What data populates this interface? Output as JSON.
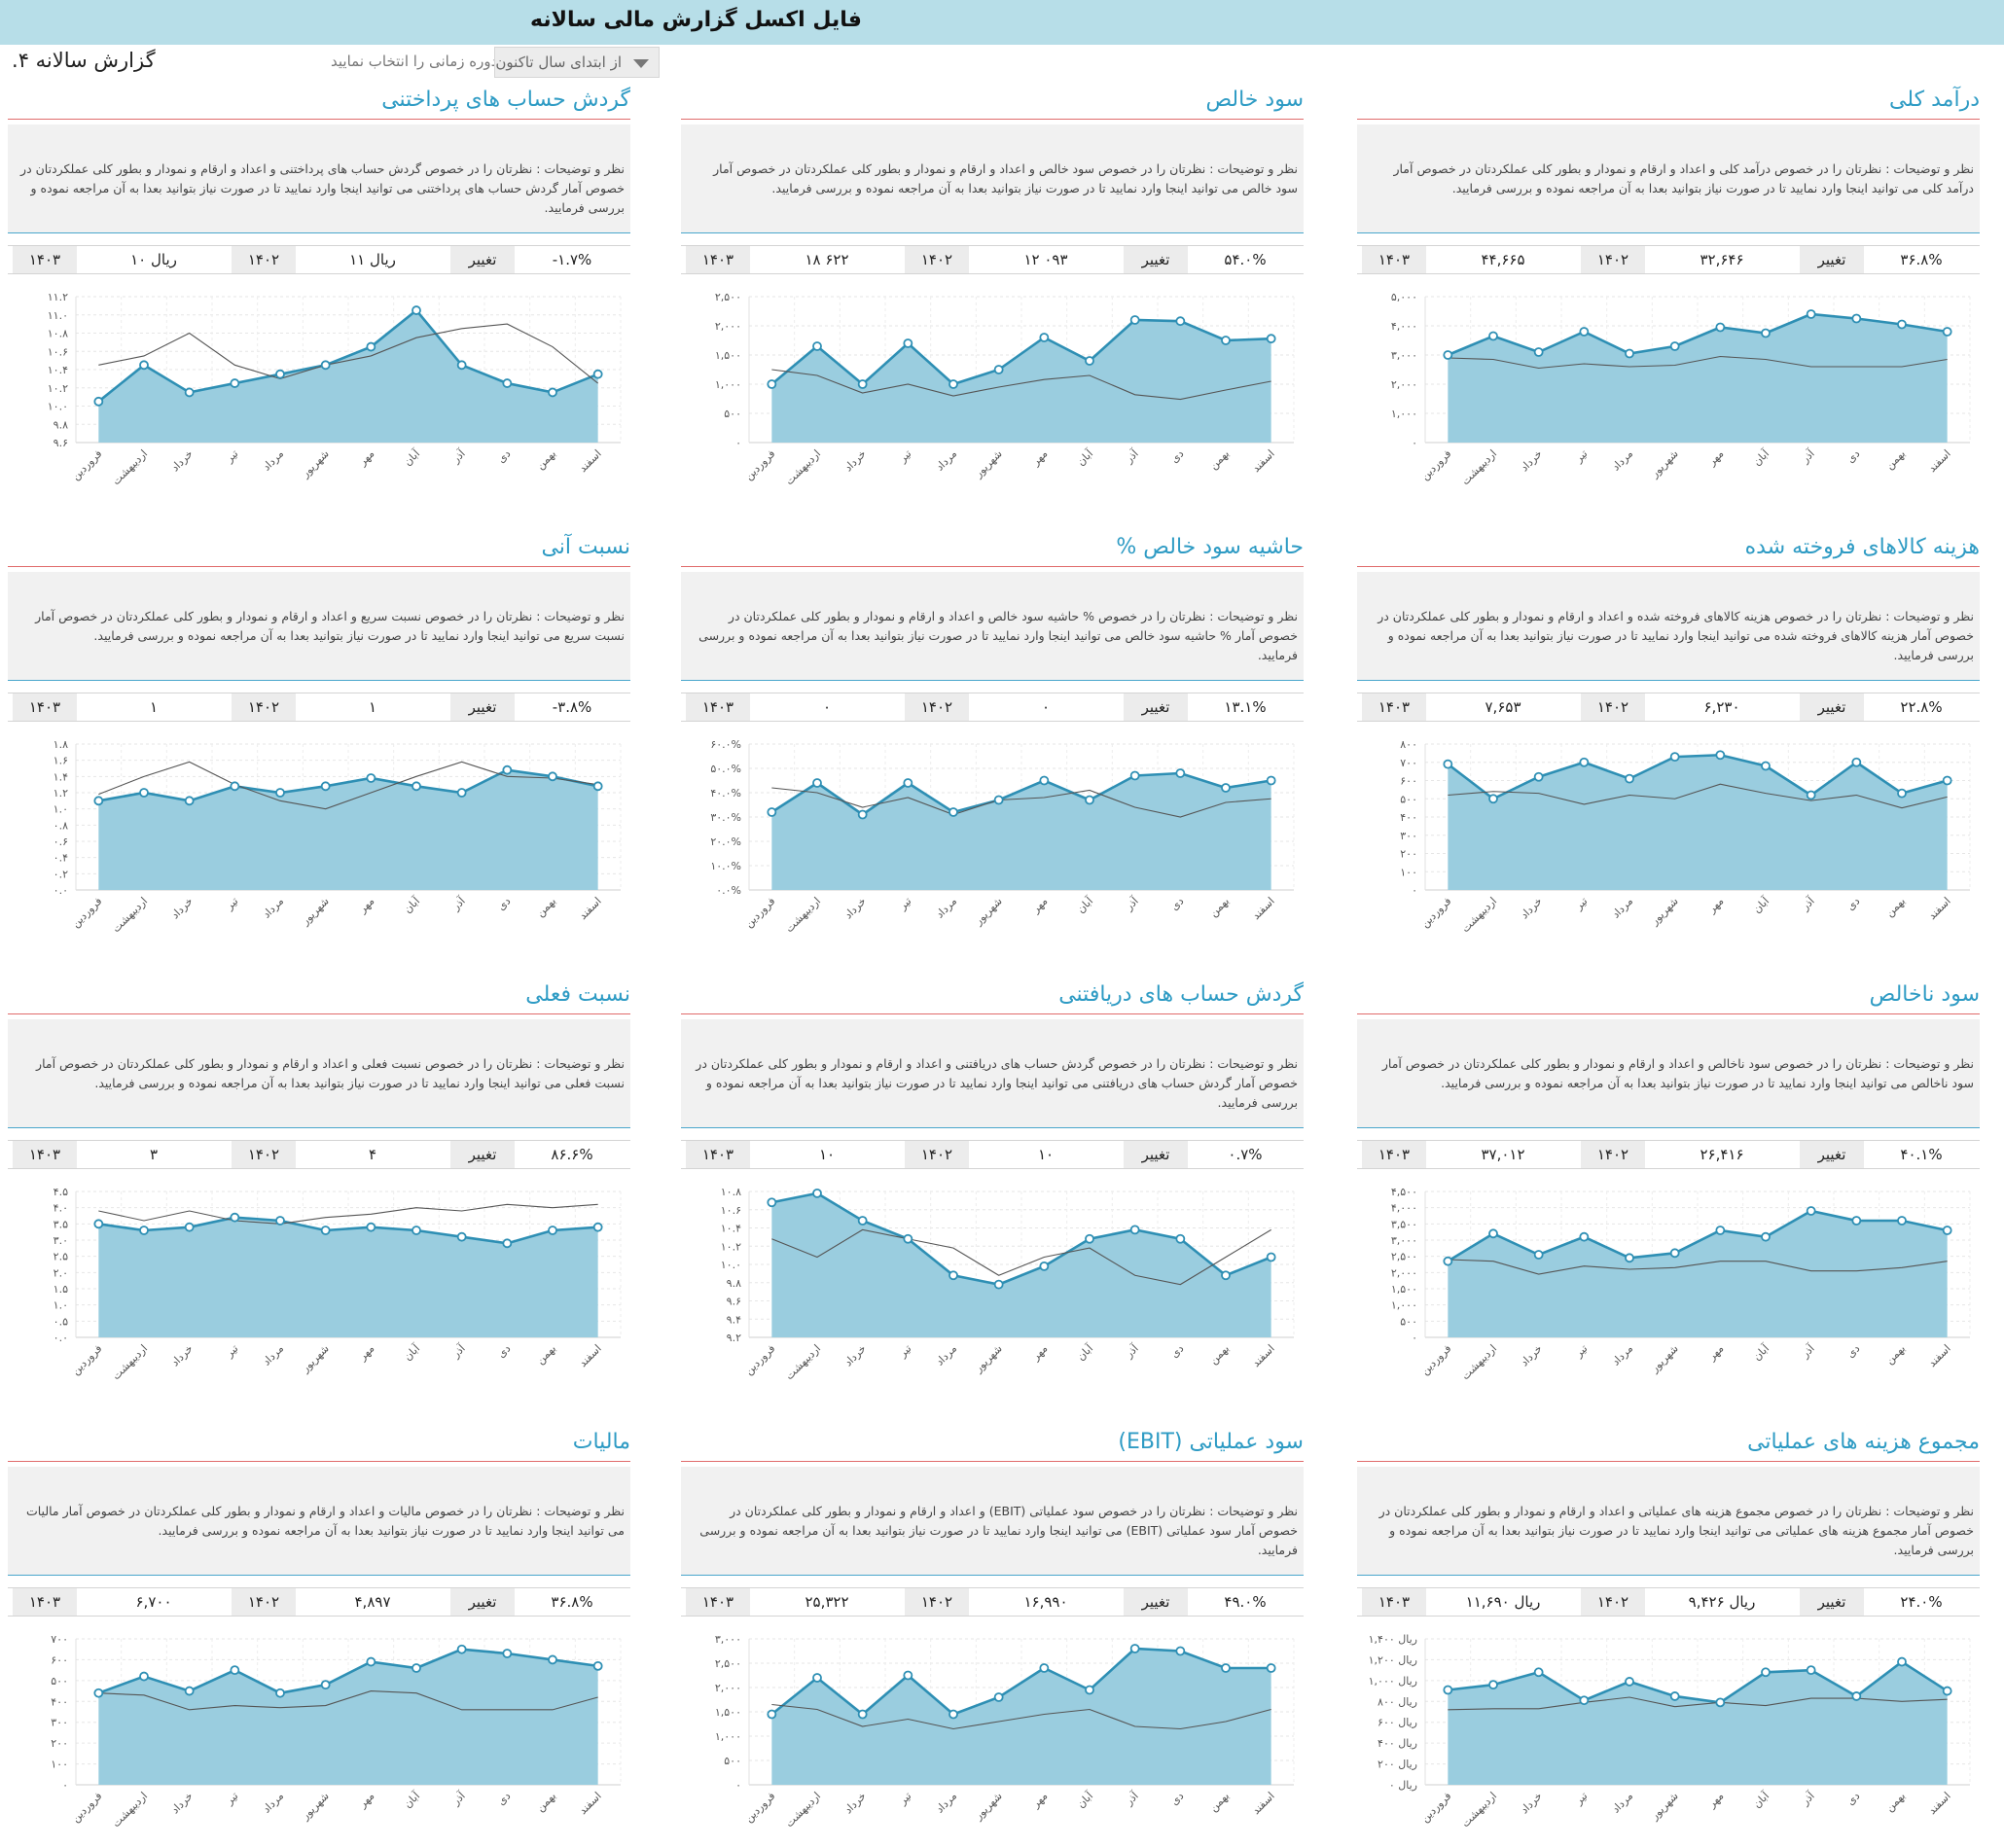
{
  "header": {
    "title": "فایل اکسل گزارش مالی سالانه",
    "report_title": "گزارش سالانه ۴.",
    "period_hint": "دوره زمانی را انتخاب نمایید",
    "period_value": "از ابتدای سال تاکنون"
  },
  "colors": {
    "accent": "#2e9bc4",
    "area_fill": "#9acddf",
    "title_rule": "#e06b6b",
    "comment_rule": "#4aa7cc"
  },
  "kpi_labels": {
    "current_year": "۱۴۰۳",
    "previous_year": "۱۴۰۲",
    "change": "تغییر"
  },
  "months": [
    "فروردین",
    "اردیبهشت",
    "خرداد",
    "تیر",
    "مرداد",
    "شهریور",
    "مهر",
    "آبان",
    "آذر",
    "دی",
    "بهمن",
    "اسفند"
  ],
  "panels": [
    {
      "title": "درآمد کلی",
      "comment": "نظر و توضیحات : نظرتان را در خصوص درآمد کلی و اعداد و ارقام و نمودار و بطور کلی عملکردتان در خصوص آمار درآمد کلی می توانید اینجا وارد نمایید تا در صورت نیاز بتوانید بعدا به آن مراجعه نموده و بررسی فرمایید.",
      "kpi": {
        "current": "۴۴,۶۶۵",
        "previous": "۳۲,۶۴۶",
        "change": "۳۶.۸%"
      }
    },
    {
      "title": "سود خالص",
      "comment": "نظر و توضیحات : نظرتان را در خصوص سود خالص و اعداد و ارقام و نمودار و بطور کلی عملکردتان در خصوص آمار سود خالص می توانید اینجا وارد نمایید تا در صورت نیاز بتوانید بعدا به آن مراجعه نموده و بررسی فرمایید.",
      "kpi": {
        "current": "۱۸ ۶۲۲",
        "previous": "۱۲ ۰۹۳",
        "change": "۵۴.۰%"
      }
    },
    {
      "title": "گردش حساب های پرداختنی",
      "comment": "نظر و توضیحات : نظرتان را در خصوص گردش حساب های پرداختنی و اعداد و ارقام و نمودار و بطور کلی عملکردتان در خصوص آمار گردش حساب های پرداختنی می توانید اینجا وارد نمایید تا در صورت نیاز بتوانید بعدا به آن مراجعه نموده و بررسی فرمایید.",
      "kpi": {
        "current": "ریال ۱۰",
        "previous": "ریال ۱۱",
        "change": "-۱.۷%"
      }
    },
    {
      "title": "هزینه کالاهای فروخته شده",
      "comment": "نظر و توضیحات : نظرتان را در خصوص هزینه کالاهای فروخته شده و اعداد و ارقام و نمودار و بطور کلی عملکردتان در خصوص آمار هزینه کالاهای فروخته شده می توانید اینجا وارد نمایید تا در صورت نیاز بتوانید بعدا به آن مراجعه نموده و بررسی فرمایید.",
      "kpi": {
        "current": "۷,۶۵۳",
        "previous": "۶,۲۳۰",
        "change": "۲۲.۸%"
      }
    },
    {
      "title": "حاشیه سود خالص %",
      "comment": "نظر و توضیحات : نظرتان را در خصوص % حاشیه سود خالص و اعداد و ارقام و نمودار و بطور کلی عملکردتان در خصوص آمار % حاشیه سود خالص می توانید اینجا وارد نمایید تا در صورت نیاز بتوانید بعدا به آن مراجعه نموده و بررسی فرمایید.",
      "kpi": {
        "current": "۰",
        "previous": "۰",
        "change": "۱۳.۱%"
      }
    },
    {
      "title": "نسبت آنی",
      "comment": "نظر و توضیحات : نظرتان را در خصوص نسبت سریع و اعداد و ارقام و نمودار و بطور کلی عملکردتان در خصوص آمار نسبت سریع می توانید اینجا وارد نمایید تا در صورت نیاز بتوانید بعدا به آن مراجعه نموده و بررسی فرمایید.",
      "kpi": {
        "current": "۱",
        "previous": "۱",
        "change": "-۳.۸%"
      }
    },
    {
      "title": "سود ناخالص",
      "comment": "نظر و توضیحات : نظرتان را در خصوص سود ناخالص و اعداد و ارقام و نمودار و بطور کلی عملکردتان در خصوص آمار سود ناخالص می توانید اینجا وارد نمایید تا در صورت نیاز بتوانید بعدا به آن مراجعه نموده و بررسی فرمایید.",
      "kpi": {
        "current": "۳۷,۰۱۲",
        "previous": "۲۶,۴۱۶",
        "change": "۴۰.۱%"
      }
    },
    {
      "title": "گردش حساب های دریافتنی",
      "comment": "نظر و توضیحات : نظرتان را در خصوص گردش حساب های دریافتنی و اعداد و ارقام و نمودار و بطور کلی عملکردتان در خصوص آمار گردش حساب های دریافتنی می توانید اینجا وارد نمایید تا در صورت نیاز بتوانید بعدا به آن مراجعه نموده و بررسی فرمایید.",
      "kpi": {
        "current": "۱۰",
        "previous": "۱۰",
        "change": "۰.۷%"
      }
    },
    {
      "title": "نسبت فعلی",
      "comment": "نظر و توضیحات : نظرتان را در خصوص نسبت فعلی و اعداد و ارقام و نمودار و بطور کلی عملکردتان در خصوص آمار نسبت فعلی می توانید اینجا وارد نمایید تا در صورت نیاز بتوانید بعدا به آن مراجعه نموده و بررسی فرمایید.",
      "kpi": {
        "current": "۳",
        "previous": "۴",
        "change": "۸۶.۶%"
      }
    },
    {
      "title": "مجموع هزینه های عملیاتی",
      "comment": "نظر و توضیحات : نظرتان را در خصوص مجموع هزینه های عملیاتی و اعداد و ارقام و نمودار و بطور کلی عملکردتان در خصوص آمار مجموع هزینه های عملیاتی می توانید اینجا وارد نمایید تا در صورت نیاز بتوانید بعدا به آن مراجعه نموده و بررسی فرمایید.",
      "kpi": {
        "current": "ریال ۱۱,۶۹۰",
        "previous": "ریال ۹,۴۲۶",
        "change": "۲۴.۰%"
      }
    },
    {
      "title": "سود عملیاتی (EBIT)",
      "comment": "نظر و توضیحات : نظرتان را در خصوص سود عملیاتی (EBIT) و اعداد و ارقام و نمودار و بطور کلی عملکردتان در خصوص آمار سود عملیاتی (EBIT) می توانید اینجا وارد نمایید تا در صورت نیاز بتوانید بعدا به آن مراجعه نموده و بررسی فرمایید.",
      "kpi": {
        "current": "۲۵,۳۲۲",
        "previous": "۱۶,۹۹۰",
        "change": "۴۹.۰%"
      }
    },
    {
      "title": "مالیات",
      "comment": "نظر و توضیحات : نظرتان را در خصوص مالیات و اعداد و ارقام و نمودار و بطور کلی عملکردتان در خصوص آمار مالیات می توانید اینجا وارد نمایید تا در صورت نیاز بتوانید بعدا به آن مراجعه نموده و بررسی فرمایید.",
      "kpi": {
        "current": "۶,۷۰۰",
        "previous": "۴,۸۹۷",
        "change": "۳۶.۸%"
      }
    }
  ],
  "chart_data": [
    {
      "type": "area",
      "x": "months",
      "ylim": [
        0,
        5000
      ],
      "yticks": [
        "۰",
        "۱,۰۰۰",
        "۲,۰۰۰",
        "۳,۰۰۰",
        "۴,۰۰۰",
        "۵,۰۰۰"
      ],
      "series": [
        {
          "values": [
            3000,
            3650,
            3100,
            3800,
            3050,
            3300,
            3950,
            3750,
            4400,
            4250,
            4050,
            3800
          ]
        },
        {
          "values": [
            2900,
            2850,
            2550,
            2700,
            2600,
            2650,
            2950,
            2850,
            2600,
            2600,
            2600,
            2850
          ]
        }
      ]
    },
    {
      "type": "area",
      "x": "months",
      "ylim": [
        0,
        2500
      ],
      "yticks": [
        "۰",
        "۵۰۰",
        "۱,۰۰۰",
        "۱,۵۰۰",
        "۲,۰۰۰",
        "۲,۵۰۰"
      ],
      "series": [
        {
          "values": [
            1000,
            1650,
            1000,
            1700,
            1000,
            1250,
            1800,
            1400,
            2100,
            2080,
            1750,
            1780
          ]
        },
        {
          "values": [
            1250,
            1150,
            850,
            1000,
            800,
            950,
            1080,
            1150,
            820,
            740,
            900,
            1050
          ]
        }
      ]
    },
    {
      "type": "area",
      "x": "months",
      "ylim": [
        9.6,
        11.2
      ],
      "yticks": [
        "۹.۶",
        "۹.۸",
        "۱۰.۰",
        "۱۰.۲",
        "۱۰.۴",
        "۱۰.۶",
        "۱۰.۸",
        "۱۱.۰",
        "۱۱.۲"
      ],
      "series": [
        {
          "values": [
            10.05,
            10.45,
            10.15,
            10.25,
            10.35,
            10.45,
            10.65,
            11.05,
            10.45,
            10.25,
            10.15,
            10.35
          ]
        },
        {
          "values": [
            10.45,
            10.55,
            10.8,
            10.45,
            10.3,
            10.45,
            10.55,
            10.75,
            10.85,
            10.9,
            10.65,
            10.25
          ]
        }
      ]
    },
    {
      "type": "area",
      "x": "months",
      "ylim": [
        0,
        800
      ],
      "yticks": [
        "۰",
        "۱۰۰",
        "۲۰۰",
        "۳۰۰",
        "۴۰۰",
        "۵۰۰",
        "۶۰۰",
        "۷۰۰",
        "۸۰۰"
      ],
      "series": [
        {
          "values": [
            690,
            500,
            620,
            700,
            610,
            730,
            740,
            680,
            520,
            700,
            530,
            600
          ]
        },
        {
          "values": [
            520,
            540,
            530,
            470,
            520,
            500,
            580,
            530,
            490,
            520,
            450,
            510
          ]
        }
      ]
    },
    {
      "type": "area",
      "x": "months",
      "ylim": [
        0,
        60
      ],
      "yticks": [
        "۰.۰%",
        "۱۰.۰%",
        "۲۰.۰%",
        "۳۰.۰%",
        "۴۰.۰%",
        "۵۰.۰%",
        "۶۰.۰%"
      ],
      "series": [
        {
          "values": [
            32,
            44,
            31,
            44,
            32,
            37,
            45,
            37,
            47,
            48,
            42,
            45
          ]
        },
        {
          "values": [
            42,
            40,
            34,
            38,
            31,
            37,
            38,
            41,
            34,
            30,
            36,
            37.5
          ]
        }
      ]
    },
    {
      "type": "area",
      "x": "months",
      "ylim": [
        0,
        1.8
      ],
      "yticks": [
        "۰.۰",
        "۰.۲",
        "۰.۴",
        "۰.۶",
        "۰.۸",
        "۱.۰",
        "۱.۲",
        "۱.۴",
        "۱.۶",
        "۱.۸"
      ],
      "series": [
        {
          "values": [
            1.1,
            1.2,
            1.1,
            1.28,
            1.2,
            1.28,
            1.38,
            1.28,
            1.2,
            1.48,
            1.4,
            1.28
          ]
        },
        {
          "values": [
            1.18,
            1.4,
            1.58,
            1.3,
            1.1,
            1.0,
            1.2,
            1.4,
            1.58,
            1.4,
            1.38,
            1.3
          ]
        }
      ]
    },
    {
      "type": "area",
      "x": "months",
      "ylim": [
        0,
        4500
      ],
      "yticks": [
        "۰",
        "۵۰۰",
        "۱,۰۰۰",
        "۱,۵۰۰",
        "۲,۰۰۰",
        "۲,۵۰۰",
        "۳,۰۰۰",
        "۳,۵۰۰",
        "۴,۰۰۰",
        "۴,۵۰۰"
      ],
      "series": [
        {
          "values": [
            2350,
            3200,
            2550,
            3100,
            2450,
            2600,
            3300,
            3100,
            3900,
            3600,
            3600,
            3300
          ]
        },
        {
          "values": [
            2400,
            2350,
            1950,
            2200,
            2100,
            2150,
            2350,
            2350,
            2050,
            2050,
            2150,
            2350
          ]
        }
      ]
    },
    {
      "type": "area",
      "x": "months",
      "ylim": [
        9.2,
        10.8
      ],
      "yticks": [
        "۹.۲",
        "۹.۴",
        "۹.۶",
        "۹.۸",
        "۱۰.۰",
        "۱۰.۲",
        "۱۰.۴",
        "۱۰.۶",
        "۱۰.۸"
      ],
      "series": [
        {
          "values": [
            10.68,
            10.78,
            10.48,
            10.28,
            9.88,
            9.78,
            9.98,
            10.28,
            10.38,
            10.28,
            9.88,
            10.08
          ]
        },
        {
          "values": [
            10.28,
            10.08,
            10.38,
            10.28,
            10.18,
            9.88,
            10.08,
            10.18,
            9.88,
            9.78,
            10.08,
            10.38
          ]
        }
      ]
    },
    {
      "type": "area",
      "x": "months",
      "ylim": [
        0,
        4.5
      ],
      "yticks": [
        "۰.۰",
        "۰.۵",
        "۱.۰",
        "۱.۵",
        "۲.۰",
        "۲.۵",
        "۳.۰",
        "۳.۵",
        "۴.۰",
        "۴.۵"
      ],
      "series": [
        {
          "values": [
            3.5,
            3.3,
            3.4,
            3.7,
            3.6,
            3.3,
            3.4,
            3.3,
            3.1,
            2.9,
            3.3,
            3.4
          ]
        },
        {
          "values": [
            3.9,
            3.6,
            3.9,
            3.6,
            3.5,
            3.7,
            3.8,
            4.0,
            3.9,
            4.1,
            4.0,
            4.1
          ]
        }
      ]
    },
    {
      "type": "area",
      "x": "months",
      "ylim": [
        0,
        1400
      ],
      "yticks": [
        "ریال ۰",
        "ریال ۲۰۰",
        "ریال ۴۰۰",
        "ریال ۶۰۰",
        "ریال ۸۰۰",
        "ریال ۱,۰۰۰",
        "ریال ۱,۲۰۰",
        "ریال ۱,۴۰۰"
      ],
      "series": [
        {
          "values": [
            910,
            960,
            1080,
            810,
            990,
            850,
            790,
            1080,
            1100,
            850,
            1180,
            900
          ]
        },
        {
          "values": [
            720,
            730,
            730,
            790,
            840,
            750,
            790,
            760,
            830,
            830,
            800,
            820
          ]
        }
      ]
    },
    {
      "type": "area",
      "x": "months",
      "ylim": [
        0,
        3000
      ],
      "yticks": [
        "۰",
        "۵۰۰",
        "۱,۰۰۰",
        "۱,۵۰۰",
        "۲,۰۰۰",
        "۲,۵۰۰",
        "۳,۰۰۰"
      ],
      "series": [
        {
          "values": [
            1450,
            2200,
            1450,
            2250,
            1450,
            1800,
            2400,
            1950,
            2800,
            2750,
            2400,
            2400
          ]
        },
        {
          "values": [
            1650,
            1550,
            1200,
            1350,
            1150,
            1300,
            1450,
            1550,
            1200,
            1150,
            1300,
            1550
          ]
        }
      ]
    },
    {
      "type": "area",
      "x": "months",
      "ylim": [
        0,
        700
      ],
      "yticks": [
        "۰",
        "۱۰۰",
        "۲۰۰",
        "۳۰۰",
        "۴۰۰",
        "۵۰۰",
        "۶۰۰",
        "۷۰۰"
      ],
      "series": [
        {
          "values": [
            440,
            520,
            450,
            550,
            440,
            480,
            590,
            560,
            650,
            630,
            600,
            570
          ]
        },
        {
          "values": [
            440,
            430,
            360,
            380,
            370,
            380,
            450,
            440,
            360,
            360,
            360,
            420
          ]
        }
      ]
    }
  ]
}
